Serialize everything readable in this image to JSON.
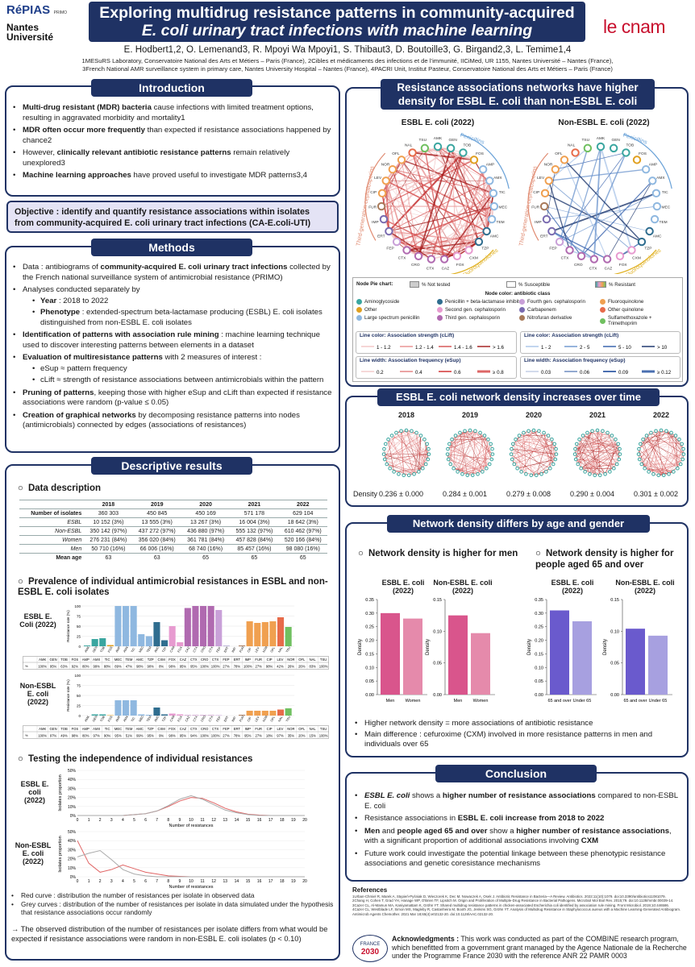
{
  "header": {
    "logo_repias": "RéPIAS",
    "logo_repias_sub": "PRIMO",
    "logo_nantes_1": "Nantes",
    "logo_nantes_2": "Université",
    "title_line1": "Exploring multidrug resistance patterns in community-acquired",
    "title_line2": "E. coli urinary tract infections with machine learning",
    "logo_cnam": "le cnam",
    "authors": "E. Hodbert1,2, O. Lemenand3, R. Mpoyi Wa Mpoyi1, S. Thibaut3, D. Boutoille3, G. Birgand2,3, L. Temime1,4",
    "affil_line1": "1MESuRS Laboratory, Conservatoire National des Arts et Métiers – Paris (France), 2Cibles et médicaments des infections et de l’immunité, IICiMed, UR 1155, Nantes Université – Nantes (France),",
    "affil_line2": "3French National AMR surveillance system in primary care, Nantes University Hospital – Nantes (France), 4PACRI Unit, Institut Pasteur, Conservatoire National des Arts et Métiers – Paris (France)"
  },
  "intro": {
    "title": "Introduction",
    "b1_bold": "Multi-drug resistant (MDR) bacteria",
    "b1_rest": " cause infections with limited treatment options, resulting in aggravated morbidity and mortality1",
    "b2_bold": "MDR often occur more frequently",
    "b2_rest": " than expected if resistance associations happened by chance2",
    "b3_pre": "However, ",
    "b3_bold": "clinically relevant antibiotic resistance patterns",
    "b3_rest": " remain relatively unexplored3",
    "b4_bold": "Machine learning approaches",
    "b4_rest": " have proved useful to investigate MDR patterns3,4"
  },
  "objective": {
    "text": "Objective : identify and quantify resistance associations within isolates from community-acquired E. coli urinary tract infections (CA-E.coli-UTI)"
  },
  "methods": {
    "title": "Methods",
    "m1_pre": "Data : antibiograms of ",
    "m1_bold": "community-acquired E. coli urinary tract infections",
    "m1_rest": " collected by the French national surveillance system of antimicrobial resistance (PRIMO)",
    "m2": "Analyses conducted separately by",
    "m2a_bold": "Year",
    "m2a_rest": " : 2018 to 2022",
    "m2b_bold": "Phenotype",
    "m2b_rest": " : extended-spectrum beta-lactamase producing (ESBL) E. coli isolates distinguished from non-ESBL E. coli isolates",
    "m3_bold": "Identification of patterns with association rule mining",
    "m3_rest": " : machine learning technique used to discover interesting patterns between elements in a dataset",
    "m4_bold": "Evaluation of multiresistance patterns",
    "m4_rest": " with 2 measures of interest :",
    "m4a": "eSup ≈ pattern frequency",
    "m4b": "cLift ≈ strength of resistance associations between antimicrobials within the pattern",
    "m5_bold": "Pruning of patterns",
    "m5_rest": ", keeping those with higher eSup and cLift than expected if resistance associations were random (p-value ≤ 0.05)",
    "m6_bold": "Creation of graphical networks",
    "m6_rest": " by decomposing resistance patterns into nodes (antimicrobials) connected by edges (associations of resistances)"
  },
  "descriptive": {
    "title": "Descriptive results",
    "data_desc_title": "Data description",
    "table_headers": [
      "",
      "2018",
      "2019",
      "2020",
      "2021",
      "2022"
    ],
    "table_rows": [
      [
        "Number of isolates",
        "360 303",
        "450 845",
        "450 169",
        "571 178",
        "629 104"
      ],
      [
        "ESBL",
        "10 152 (3%)",
        "13 555 (3%)",
        "13 267 (3%)",
        "16 004 (3%)",
        "18 642 (3%)"
      ],
      [
        "Non-ESBL",
        "350 142 (97%)",
        "437 272 (97%)",
        "436 880 (97%)",
        "555 132 (97%)",
        "610 462 (97%)"
      ],
      [
        "Women",
        "276 231 (84%)",
        "356 020 (84%)",
        "361 781 (84%)",
        "457 828 (84%)",
        "520 166 (84%)"
      ],
      [
        "Men",
        "50 710 (16%)",
        "66 006 (16%)",
        "68 740 (16%)",
        "85 457 (16%)",
        "98 080 (16%)"
      ],
      [
        "Mean age",
        "63",
        "63",
        "65",
        "65",
        "65"
      ]
    ],
    "prevalence_title": "Prevalence of individual antimicrobial resistances in ESBL and non-ESBL E. coli isolates",
    "esbl_label": "ESBL E. Coli (2022)",
    "nonesbl_label": "Non-ESBL E. coli (2022)",
    "y_axis": "Resistance rate (%)",
    "abx": [
      "AMK",
      "GEN",
      "TOB",
      "FOS",
      "AMP",
      "AMX",
      "TIC",
      "MEC",
      "TEM",
      "AMC",
      "TZP",
      "CXM",
      "FOX",
      "CAZ",
      "CTX",
      "CRO",
      "CTX",
      "FEP",
      "ERT",
      "IMP",
      "FUR",
      "CIP",
      "LEV",
      "NOR",
      "OFL",
      "NAL",
      "TSU"
    ],
    "esbl_tested": [
      "100%",
      "95%",
      "63%",
      "92%",
      "80%",
      "99%",
      "88%",
      "89%",
      "47%",
      "98%",
      "90%",
      "8%",
      "98%",
      "95%",
      "95%",
      "100%",
      "100%",
      "27%",
      "78%",
      "100%",
      "27%",
      "98%",
      "42%",
      "26%",
      "26%",
      "83%",
      "100%"
    ],
    "nonesbl_tested": [
      "100%",
      "97%",
      "49%",
      "98%",
      "80%",
      "97%",
      "90%",
      "95%",
      "51%",
      "99%",
      "95%",
      "9%",
      "98%",
      "95%",
      "94%",
      "100%",
      "100%",
      "27%",
      "78%",
      "95%",
      "27%",
      "18%",
      "97%",
      "35%",
      "20%",
      "15%",
      "100%"
    ],
    "indep_title": "Testing the independence of individual resistances",
    "indep_esbl": "ESBL E. coli (2022)",
    "indep_nonesbl": "Non-ESBL E. coli (2022)",
    "indep_y": "Isolates proportion",
    "indep_x": "Number of resistances",
    "red_note": "Red curve : distribution the number of resistances per isolate in observed data",
    "grey_note": "Grey curves : distribution of the number of resistances per isolate in data simulated under the hypothesis that resistance associations occur randomly",
    "conclusion_note": "→ The observed distribution of the number of resistances per isolate differs from what would be expected if resistance associations were random in non-ESBL E. coli isolates (p < 0.10)"
  },
  "networks": {
    "title_line1": "Resistance associations networks have higher",
    "title_line2": "density for ESBL E. coli than non-ESBL E. coli",
    "esbl_title": "ESBL E. coli (2022)",
    "nonesbl_title": "Non-ESBL E. coli (2022)",
    "arc_penicillins": "Penicillins",
    "arc_third_gen": "Third-generation cephalosporins",
    "arc_fluoro": "Fluoroquinolones",
    "legend_pie": "Node Pie chart:",
    "legend_not_tested": "% Not tested",
    "legend_susceptible": "% Susceptible",
    "legend_resistant": "% Resistant",
    "legend_node_color": "Node color: antibiotic class",
    "classes": [
      {
        "name": "Aminoglycoside",
        "color": "#3aa6a0"
      },
      {
        "name": "Penicillin + beta-lactamase inhibitor",
        "color": "#2f6d8f"
      },
      {
        "name": "Fourth gen. cephalosporin",
        "color": "#c9a0d8"
      },
      {
        "name": "Fluoroquinolone",
        "color": "#f0a050"
      },
      {
        "name": "Other",
        "color": "#e0a020"
      },
      {
        "name": "Second gen. cephalosporin",
        "color": "#e79bd0"
      },
      {
        "name": "Carbapenem",
        "color": "#7a6bb0"
      },
      {
        "name": "Other quinolone",
        "color": "#e76b4a"
      },
      {
        "name": "Large spectrum penicillin",
        "color": "#8fb8e0"
      },
      {
        "name": "Third gen. cephalosporin",
        "color": "#b06ab0"
      },
      {
        "name": "Nitrofuran derivative",
        "color": "#a87a5a"
      },
      {
        "name": "Sulfamethoxazole + Trimethoprim",
        "color": "#70c060"
      }
    ],
    "esbl_lift_title": "Line color: Association strength (cLift)",
    "esbl_lift": [
      "1 - 1.2",
      "1.2 - 1.4",
      "1.4 - 1.6",
      "> 1.6"
    ],
    "esbl_width_title": "Line width: Association frequency (eSup)",
    "esbl_width": [
      "0.2",
      "0.4",
      "0.6",
      "≥ 0.8"
    ],
    "nonesbl_lift_title": "Line color: Association strength (cLift)",
    "nonesbl_lift": [
      "1 - 2",
      "2 - 5",
      "5 - 10",
      "> 10"
    ],
    "nonesbl_width_title": "Line width: Association frequency (eSup)",
    "nonesbl_width": [
      "0.03",
      "0.06",
      "0.09",
      "≥ 0.12"
    ]
  },
  "density_time": {
    "title": "ESBL E. coli network density increases over time",
    "years": [
      "2018",
      "2019",
      "2020",
      "2021",
      "2022"
    ],
    "density_label": "Density",
    "values": [
      "0.236 ± 0.000",
      "0.284 ± 0.001",
      "0.279 ± 0.008",
      "0.290 ± 0.004",
      "0.301 ± 0.002"
    ]
  },
  "age_gender": {
    "title": "Network density differs by age and gender",
    "men_heading": "Network density is higher for men",
    "age_heading": "Network density is higher for people aged 65 and over",
    "esbl": "ESBL E. coli (2022)",
    "nonesbl": "Non-ESBL E. coli (2022)",
    "density_axis": "Density",
    "bullet1": "Higher network density = more associations of antibiotic resistance",
    "bullet2": "Main difference : cefuroxime (CXM) involved in more resistance patterns in men and individuals over 65"
  },
  "conclusion": {
    "title": "Conclusion",
    "c1_pre": "ESBL E. coli",
    "c1_mid": " shows a ",
    "c1_bold": "higher number of resistance associations",
    "c1_rest": " compared to non-ESBL E. coli",
    "c2_pre": "Resistance associations in ",
    "c2_bold": "ESBL E. coli increase from 2018 to 2022",
    "c3_bold1": "Men",
    "c3_and": " and ",
    "c3_bold2": "people aged 65 and over",
    "c3_mid": " show a ",
    "c3_bold3": "higher number of resistance associations",
    "c3_rest": ", with a significant proportion of additional associations involving ",
    "c3_cxm": "CXM",
    "c4": "Future work could investigate the potential linkage between these phenotypic resistance associations and genetic coresistance mechanisms"
  },
  "references": {
    "title": "References",
    "r1": "1Urban-Chmiel R, Marek A, Stępień-Pyśniak D, Wieczorek K, Dec M, Nowaczek A, Osek J. Antibiotic Resistance in Bacteria—A Review. Antibiotics. 2022;11(10):1079. doi:10.3390/antibiotics11081079.",
    "r2": "2Chang H, Cohen T, Grad YH, Hanage WP, O'Brien TF, Lipsitch M. Origin and Proliferation of Multiple-Drug Resistance in Bacterial Pathogens. Microbiol Mol Biol Rev. 2015;79. doi:10.1128/mmbr.00039-14.",
    "r3": "3Cazer CL, Al-Mamun MA, Kaniyamattam K, Gröhn YT. Shared multidrug resistance patterns in chicken-associated Escherichia coli identified by association rule mining. Front Microbiol. 2019;10:446586.",
    "r4": "4Cazer CL, Westblade LF, Simon MS, Magleby R, Castanheira M, Booth JG, Jenkins SG, Gröhn YT. Analysis of Multidrug Resistance in Staphylococcus aureus with a Machine Learning-Generated Antibiogram. Antimicrob Agents Chemother. 2021 Mar 18;65(4):e02132-20. doi:10.1128/AAC.02132-20."
  },
  "ack": {
    "logo_top": "FRANCE",
    "logo_year": "2030",
    "label": "Acknowledgments :",
    "text": " This work was conducted as part of the COMBINE research program, which benefitted from a government grant managed by the Agence Nationale de la Recherche under the Programme France 2030 with the reference ANR 22 PAMR 0003"
  },
  "chart_data": [
    {
      "type": "bar",
      "title": "ESBL network density by sex",
      "categories": [
        "Men",
        "Women"
      ],
      "values": [
        0.3,
        0.28
      ],
      "ylabel": "Density",
      "ylim": [
        0,
        0.35
      ]
    },
    {
      "type": "bar",
      "title": "Non-ESBL network density by sex",
      "categories": [
        "Men",
        "Women"
      ],
      "values": [
        0.125,
        0.097
      ],
      "ylabel": "Density",
      "ylim": [
        0,
        0.15
      ]
    },
    {
      "type": "bar",
      "title": "ESBL network density by age",
      "categories": [
        "65 and over",
        "Under 65"
      ],
      "values": [
        0.31,
        0.27
      ],
      "ylabel": "Density",
      "ylim": [
        0,
        0.35
      ]
    },
    {
      "type": "bar",
      "title": "Non-ESBL network density by age",
      "categories": [
        "65 and over",
        "Under 65"
      ],
      "values": [
        0.104,
        0.093
      ],
      "ylabel": "Density",
      "ylim": [
        0,
        0.15
      ]
    },
    {
      "type": "bar",
      "title": "ESBL resistance rate 2022",
      "categories": [
        "AMK",
        "GEN",
        "TOB",
        "FOS",
        "AMP",
        "AMX",
        "TIC",
        "MEC",
        "TEM",
        "AMC",
        "TZP",
        "CXM",
        "FOX",
        "CAZ",
        "CTX",
        "CRO",
        "CTX",
        "FEP",
        "ERT",
        "IMP",
        "FUR",
        "CIP",
        "LEV",
        "NOR",
        "OFL",
        "NAL",
        "TSU"
      ],
      "values": [
        2,
        18,
        20,
        3,
        100,
        100,
        100,
        30,
        25,
        60,
        15,
        50,
        10,
        95,
        100,
        100,
        100,
        90,
        1,
        0,
        2,
        62,
        58,
        60,
        62,
        72,
        48
      ],
      "ylabel": "Resistance rate (%)",
      "ylim": [
        0,
        100
      ]
    },
    {
      "type": "bar",
      "title": "Non-ESBL resistance rate 2022",
      "categories": [
        "AMK",
        "GEN",
        "TOB",
        "FOS",
        "AMP",
        "AMX",
        "TIC",
        "MEC",
        "TEM",
        "AMC",
        "TZP",
        "CXM",
        "FOX",
        "CAZ",
        "CTX",
        "CRO",
        "CTX",
        "FEP",
        "ERT",
        "IMP",
        "FUR",
        "CIP",
        "LEV",
        "NOR",
        "OFL",
        "NAL",
        "TSU"
      ],
      "values": [
        0,
        3,
        3,
        1,
        38,
        38,
        38,
        3,
        2,
        20,
        3,
        5,
        3,
        1,
        1,
        1,
        1,
        1,
        0,
        0,
        2,
        12,
        12,
        12,
        12,
        15,
        18
      ],
      "ylabel": "Resistance rate (%)",
      "ylim": [
        0,
        100
      ]
    },
    {
      "type": "line",
      "title": "ESBL number of resistances",
      "x": [
        0,
        1,
        2,
        3,
        4,
        5,
        6,
        7,
        8,
        9,
        10,
        11,
        12,
        13,
        14,
        15,
        16,
        17,
        18,
        19,
        20
      ],
      "series": [
        {
          "values": [
            0,
            0,
            0,
            0,
            0,
            0.01,
            0.02,
            0.05,
            0.1,
            0.16,
            0.2,
            0.19,
            0.14,
            0.08,
            0.04,
            0.015,
            0.005,
            0,
            0,
            0,
            0
          ]
        },
        {
          "values": [
            0,
            0,
            0,
            0,
            0,
            0.01,
            0.02,
            0.05,
            0.11,
            0.18,
            0.22,
            0.18,
            0.12,
            0.06,
            0.03,
            0.01,
            0,
            0,
            0,
            0,
            0
          ]
        }
      ],
      "xlabel": "Number of resistances",
      "ylabel": "Isolates proportion",
      "ylim": [
        0,
        0.5
      ]
    },
    {
      "type": "line",
      "title": "Non-ESBL number of resistances",
      "x": [
        0,
        1,
        2,
        3,
        4,
        5,
        6,
        7,
        8,
        9,
        10,
        11,
        12,
        13,
        14,
        15,
        16,
        17,
        18,
        19,
        20
      ],
      "series": [
        {
          "values": [
            0.4,
            0.15,
            0.05,
            0.08,
            0.13,
            0.09,
            0.05,
            0.03,
            0.01,
            0.005,
            0,
            0,
            0,
            0,
            0,
            0,
            0,
            0,
            0,
            0,
            0
          ]
        },
        {
          "values": [
            0.22,
            0.26,
            0.29,
            0.19,
            0.08,
            0.03,
            0.01,
            0,
            0,
            0,
            0,
            0,
            0,
            0,
            0,
            0,
            0,
            0,
            0,
            0,
            0
          ]
        }
      ],
      "xlabel": "Number of resistances",
      "ylabel": "Isolates proportion",
      "ylim": [
        0,
        0.5
      ]
    }
  ]
}
